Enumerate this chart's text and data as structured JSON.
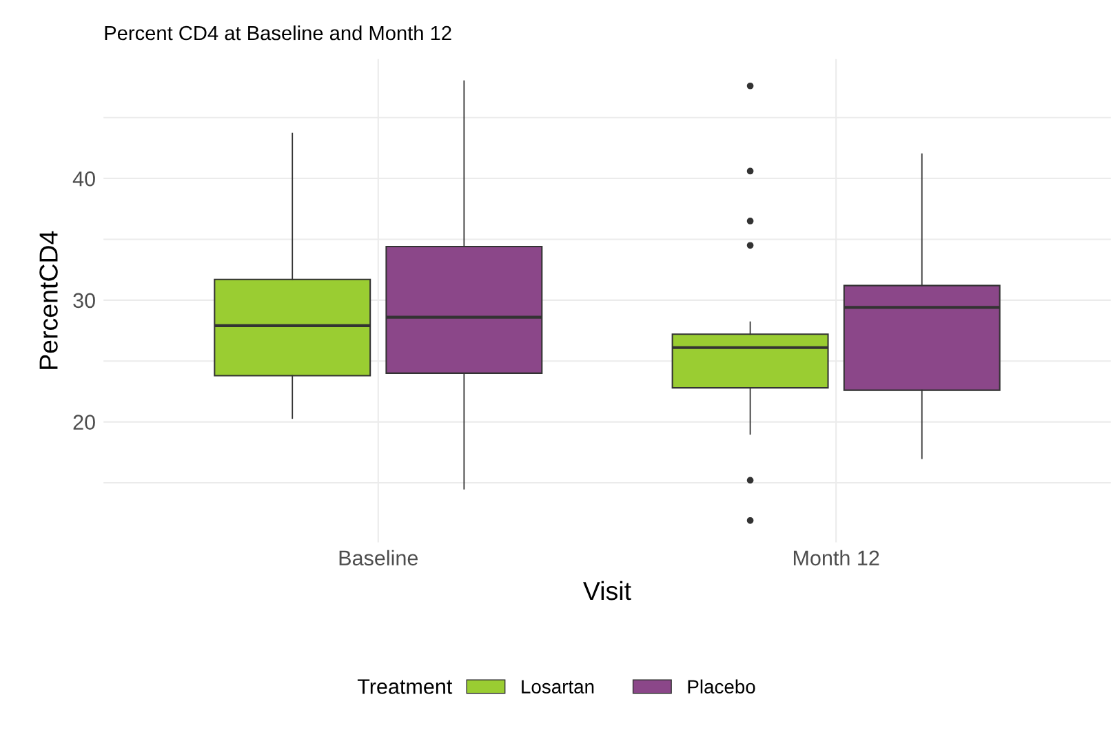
{
  "chart_data": {
    "type": "box",
    "title": "Percent CD4 at Baseline and Month 12",
    "xlabel": "Visit",
    "ylabel": "PercentCD4",
    "legend_title": "Treatment",
    "categories": [
      "Baseline",
      "Month 12"
    ],
    "series": [
      {
        "name": "Losartan",
        "color": "#9acd32",
        "boxes": [
          {
            "low": 20.3,
            "q1": 23.8,
            "median": 27.9,
            "q3": 31.7,
            "high": 43.7
          },
          {
            "low": 19.0,
            "q1": 22.8,
            "median": 26.1,
            "q3": 27.2,
            "high": 28.2,
            "outliers": [
              47.6,
              40.6,
              36.5,
              34.5,
              15.2,
              11.9
            ]
          }
        ]
      },
      {
        "name": "Placebo",
        "color": "#8b4789",
        "boxes": [
          {
            "low": 14.5,
            "q1": 24.0,
            "median": 28.6,
            "q3": 34.4,
            "high": 48.0
          },
          {
            "low": 17.0,
            "q1": 22.6,
            "median": 29.4,
            "q3": 31.2,
            "high": 42.0
          }
        ]
      }
    ],
    "ylim": [
      10.1,
      49.8
    ],
    "yticks": [
      {
        "value": 15,
        "label": null
      },
      20,
      {
        "value": 25,
        "label": null
      },
      30,
      {
        "value": 35,
        "label": null
      },
      40,
      {
        "value": 45,
        "label": null
      }
    ],
    "grid": true,
    "legend": "bottom"
  }
}
